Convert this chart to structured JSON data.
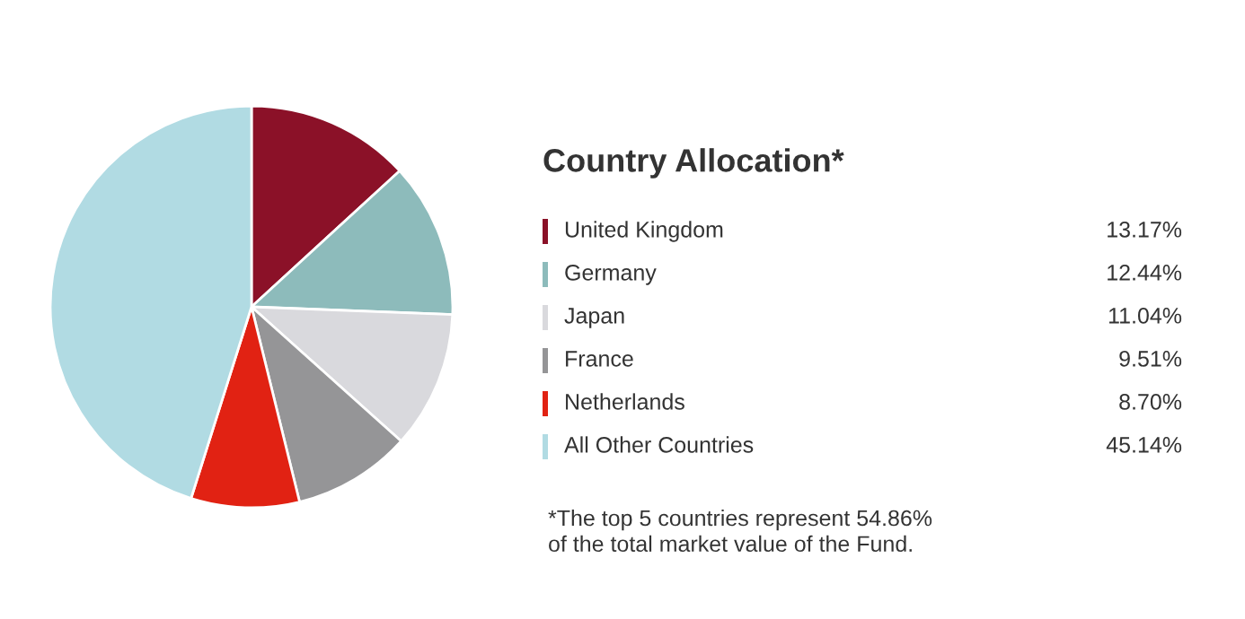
{
  "chart_data": {
    "type": "pie",
    "title": "Country Allocation*",
    "categories": [
      "United Kingdom",
      "Germany",
      "Japan",
      "France",
      "Netherlands",
      "All Other Countries"
    ],
    "values": [
      13.17,
      12.44,
      11.04,
      9.51,
      8.7,
      45.14
    ],
    "colors": [
      "#8b1128",
      "#8dbbbb",
      "#d9d9dd",
      "#959597",
      "#e12213",
      "#b1dbe3"
    ],
    "value_labels": [
      "13.17%",
      "12.44%",
      "11.04%",
      "9.51%",
      "8.70%",
      "45.14%"
    ],
    "legend": "right",
    "annotations": [
      "*The top 5 countries represent 54.86%\nof the total market value of the Fund."
    ]
  }
}
